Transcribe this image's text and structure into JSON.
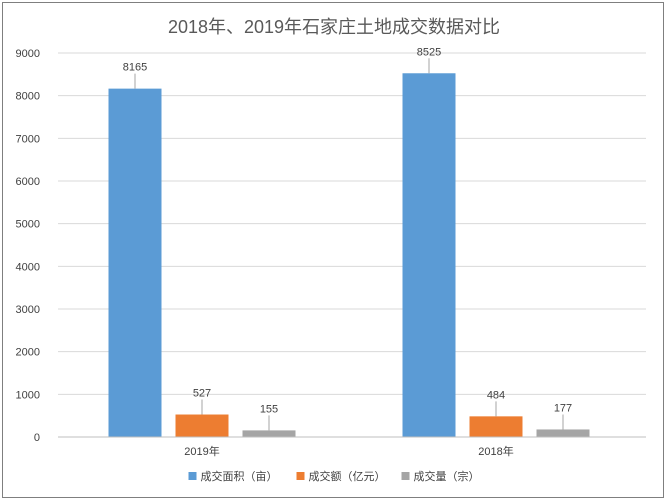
{
  "chart_data": {
    "type": "bar",
    "title": "2018年、2019年石家庄土地成交数据对比",
    "categories": [
      "2019年",
      "2018年"
    ],
    "series": [
      {
        "name": "成交面积（亩）",
        "color": "#5b9bd5",
        "values": [
          8165,
          8525
        ]
      },
      {
        "name": "成交额（亿元）",
        "color": "#ed7d31",
        "values": [
          527,
          484
        ]
      },
      {
        "name": "成交量（宗）",
        "color": "#a5a5a5",
        "values": [
          155,
          177
        ]
      }
    ],
    "ylim": [
      0,
      9000
    ],
    "yticks": [
      0,
      1000,
      2000,
      3000,
      4000,
      5000,
      6000,
      7000,
      8000,
      9000
    ],
    "grid": true,
    "legend_position": "bottom"
  }
}
